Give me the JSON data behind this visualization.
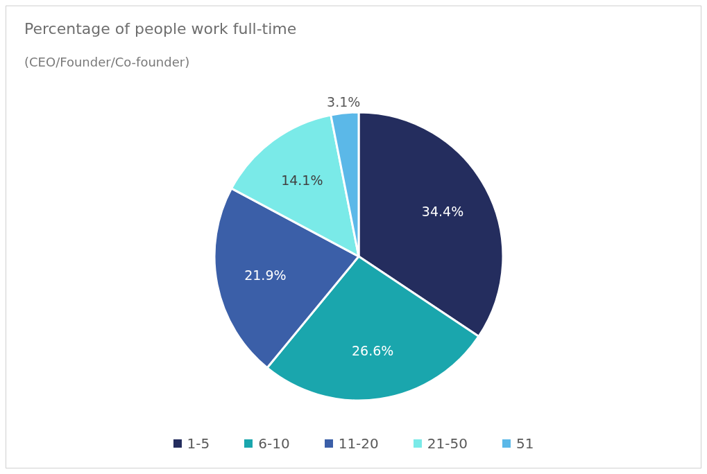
{
  "chart_data": {
    "type": "pie",
    "title": "Percentage of people work full-time",
    "subtitle": "(CEO/Founder/Co-founder)",
    "categories": [
      "1-5",
      "6-10",
      "11-20",
      "21-50",
      "51"
    ],
    "values": [
      34.4,
      26.6,
      21.9,
      14.1,
      3.1
    ],
    "colors": [
      "#242d5e",
      "#1aa6ad",
      "#3b5fa8",
      "#7aeae8",
      "#5bb8e8"
    ],
    "value_labels": [
      "34.4%",
      "26.6%",
      "21.9%",
      "14.1%",
      "3.1%"
    ],
    "legend": "bottom"
  }
}
